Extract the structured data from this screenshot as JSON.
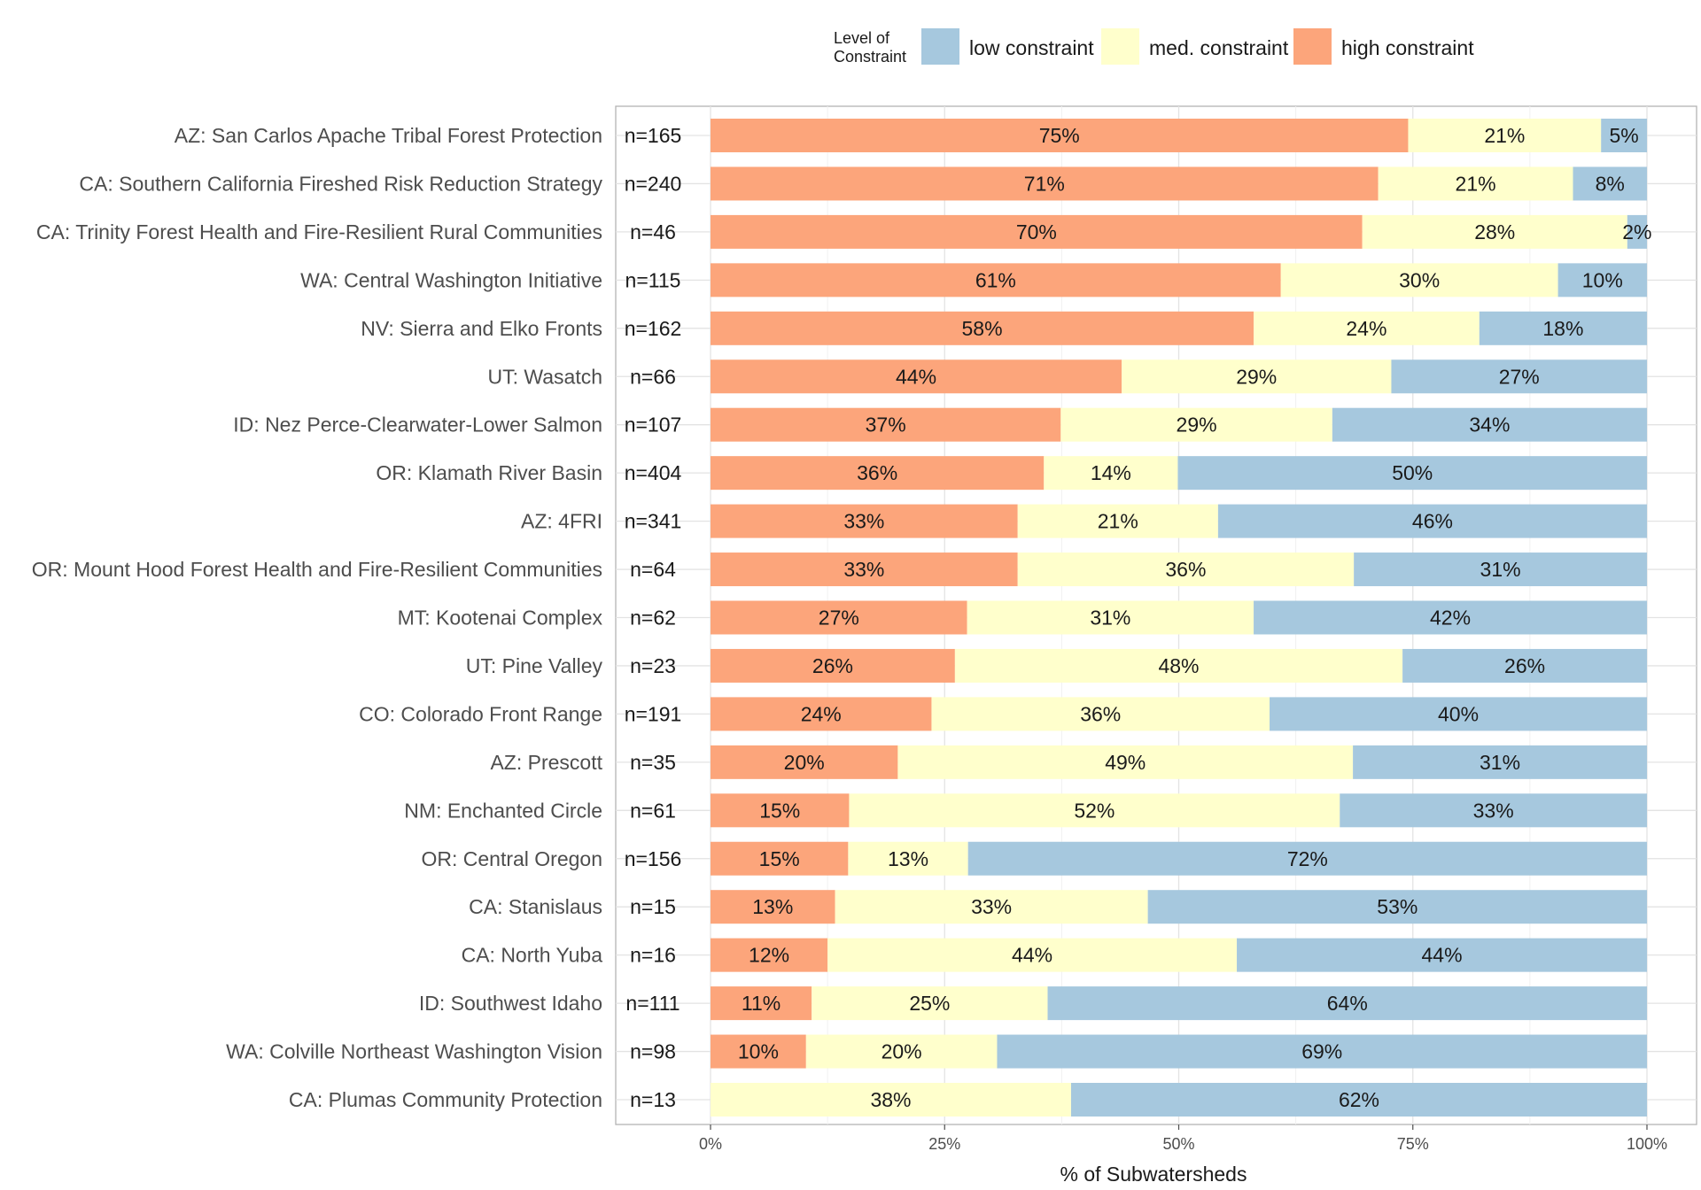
{
  "chart_data": {
    "type": "bar",
    "orientation": "horizontal",
    "stacked": true,
    "xlabel": "% of Subwatersheds",
    "xlim": [
      0,
      100
    ],
    "x_ticks": [
      "0%",
      "25%",
      "50%",
      "75%",
      "100%"
    ],
    "x_tick_values": [
      0,
      25,
      50,
      75,
      100
    ],
    "grid": true,
    "legend": {
      "title_lines": [
        "Level of",
        "Constraint"
      ],
      "position": "top",
      "items": [
        {
          "label": "low constraint",
          "color": "#a6c8de"
        },
        {
          "label": "med. constraint",
          "color": "#ffffcc"
        },
        {
          "label": "high constraint",
          "color": "#fca57b"
        }
      ]
    },
    "colors": {
      "high": "#fca57b",
      "med": "#ffffcc",
      "low": "#a6c8de"
    },
    "categories": [
      "AZ: San Carlos Apache Tribal Forest Protection",
      "CA: Southern California Fireshed Risk Reduction Strategy",
      "CA: Trinity Forest Health and Fire-Resilient Rural Communities",
      "WA: Central Washington Initiative",
      "NV: Sierra and Elko Fronts",
      "UT: Wasatch",
      "ID: Nez Perce-Clearwater-Lower Salmon",
      "OR: Klamath River Basin",
      "AZ: 4FRI",
      "OR: Mount Hood Forest Health and Fire-Resilient Communities",
      "MT: Kootenai Complex",
      "UT: Pine Valley",
      "CO: Colorado Front Range",
      "AZ: Prescott",
      "NM: Enchanted Circle",
      "OR: Central Oregon",
      "CA: Stanislaus",
      "CA: North Yuba",
      "ID: Southwest Idaho",
      "WA: Colville Northeast Washington Vision",
      "CA: Plumas Community Protection"
    ],
    "n_labels": [
      "n=165",
      "n=240",
      "n=46",
      "n=115",
      "n=162",
      "n=66",
      "n=107",
      "n=404",
      "n=341",
      "n=64",
      "n=62",
      "n=23",
      "n=191",
      "n=35",
      "n=61",
      "n=156",
      "n=15",
      "n=16",
      "n=111",
      "n=98",
      "n=13"
    ],
    "series": [
      {
        "name": "high constraint",
        "key": "high",
        "values": [
          74.5,
          71.3,
          69.6,
          60.9,
          58.0,
          43.9,
          37.4,
          35.6,
          32.8,
          32.8,
          27.4,
          26.1,
          23.6,
          20.0,
          14.8,
          14.7,
          13.3,
          12.5,
          10.8,
          10.2,
          0
        ]
      },
      {
        "name": "med. constraint",
        "key": "med",
        "values": [
          20.6,
          20.8,
          28.3,
          29.6,
          24.1,
          28.8,
          29.0,
          14.3,
          21.4,
          35.9,
          30.6,
          47.8,
          36.1,
          48.6,
          52.4,
          12.8,
          33.4,
          43.7,
          25.2,
          20.4,
          38.5
        ]
      },
      {
        "name": "low constraint",
        "key": "low",
        "values": [
          4.9,
          7.9,
          2.1,
          9.5,
          17.9,
          27.3,
          33.6,
          50.1,
          45.8,
          31.3,
          42.0,
          26.1,
          40.3,
          31.4,
          32.8,
          72.5,
          53.3,
          43.8,
          64.0,
          69.4,
          61.5
        ]
      }
    ],
    "bar_labels": {
      "high": [
        "75%",
        "71%",
        "70%",
        "61%",
        "58%",
        "44%",
        "37%",
        "36%",
        "33%",
        "33%",
        "27%",
        "26%",
        "24%",
        "20%",
        "15%",
        "15%",
        "13%",
        "12%",
        "11%",
        "10%",
        ""
      ],
      "med": [
        "21%",
        "21%",
        "28%",
        "30%",
        "24%",
        "29%",
        "29%",
        "14%",
        "21%",
        "36%",
        "31%",
        "48%",
        "36%",
        "49%",
        "52%",
        "13%",
        "33%",
        "44%",
        "25%",
        "20%",
        "38%"
      ],
      "low": [
        "5%",
        "8%",
        "2%",
        "10%",
        "18%",
        "27%",
        "34%",
        "50%",
        "46%",
        "31%",
        "42%",
        "26%",
        "40%",
        "31%",
        "33%",
        "72%",
        "53%",
        "44%",
        "64%",
        "69%",
        "62%"
      ]
    }
  }
}
